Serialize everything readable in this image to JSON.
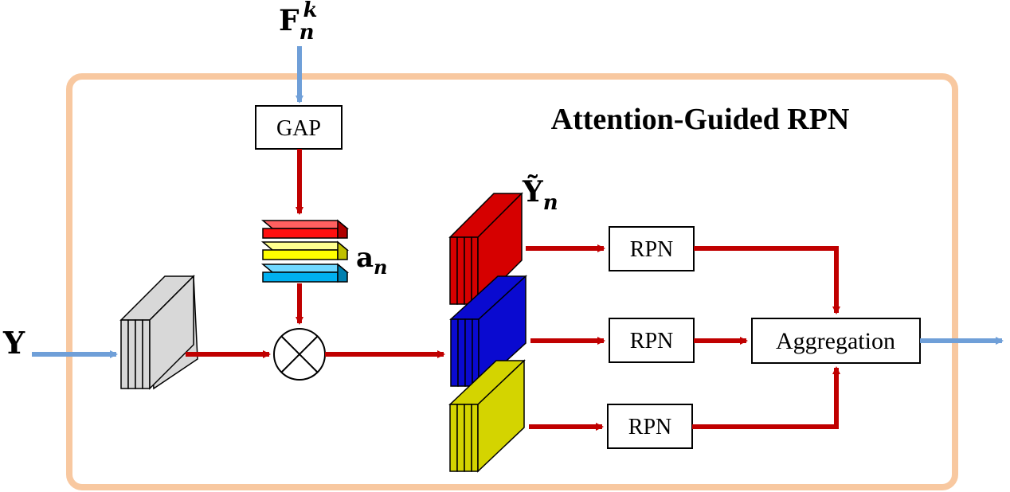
{
  "title": "Attention-Guided RPN",
  "inputs": {
    "feature": "F",
    "feature_sub": "n",
    "feature_sup": "k",
    "y": "Y"
  },
  "gap_label": "GAP",
  "attention": {
    "base": "a",
    "sub": "n"
  },
  "stack_label": {
    "base": "Ỹ",
    "sub": "n"
  },
  "rpn_labels": [
    "RPN",
    "RPN",
    "RPN"
  ],
  "aggregation_label": "Aggregation",
  "colors": {
    "frame": "#f8c8a0",
    "input_arrow": "#6f9fd8",
    "flow_arrow": "#c00000",
    "red_stack": "#d60000",
    "blue_stack": "#0a0ad0",
    "yellow_stack": "#d4d400",
    "gray_stack": "#d8d8d8",
    "att_red": "#ff1010",
    "att_yellow": "#ffff00",
    "att_cyan": "#00b0f0"
  }
}
